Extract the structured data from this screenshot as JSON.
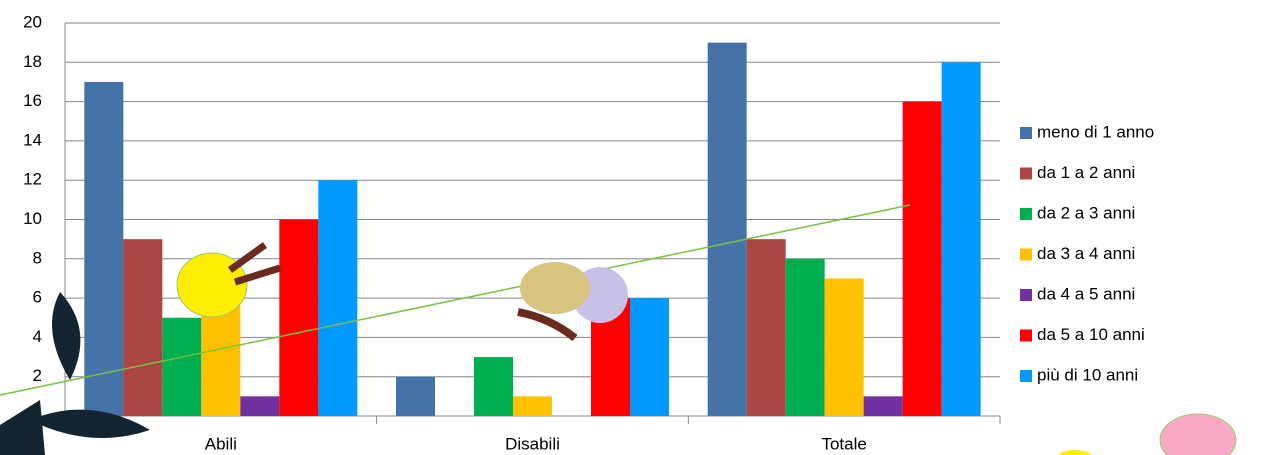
{
  "chart_data": {
    "type": "bar",
    "categories": [
      "Abili",
      "Disabili",
      "Totale"
    ],
    "series": [
      {
        "name": "meno di 1 anno",
        "color": "#4572a7",
        "values": [
          17,
          2,
          19
        ]
      },
      {
        "name": "da 1 a 2 anni",
        "color": "#aa4643",
        "values": [
          9,
          0,
          9
        ]
      },
      {
        "name": "da 2 a 3 anni",
        "color": "#00b050",
        "values": [
          5,
          3,
          8
        ]
      },
      {
        "name": "da 3 a 4 anni",
        "color": "#ffc000",
        "values": [
          6,
          1,
          7
        ]
      },
      {
        "name": "da 4 a 5 anni",
        "color": "#7030a0",
        "values": [
          1,
          0,
          1
        ]
      },
      {
        "name": "da 5 a 10 anni",
        "color": "#ff0000",
        "values": [
          10,
          6,
          16
        ]
      },
      {
        "name": "più di 10 anni",
        "color": "#0099ff",
        "values": [
          12,
          6,
          18
        ]
      }
    ],
    "ylim": [
      0,
      20
    ],
    "yticks": [
      0,
      2,
      4,
      6,
      8,
      10,
      12,
      14,
      16,
      18,
      20
    ],
    "grid": true,
    "legend": "right"
  }
}
